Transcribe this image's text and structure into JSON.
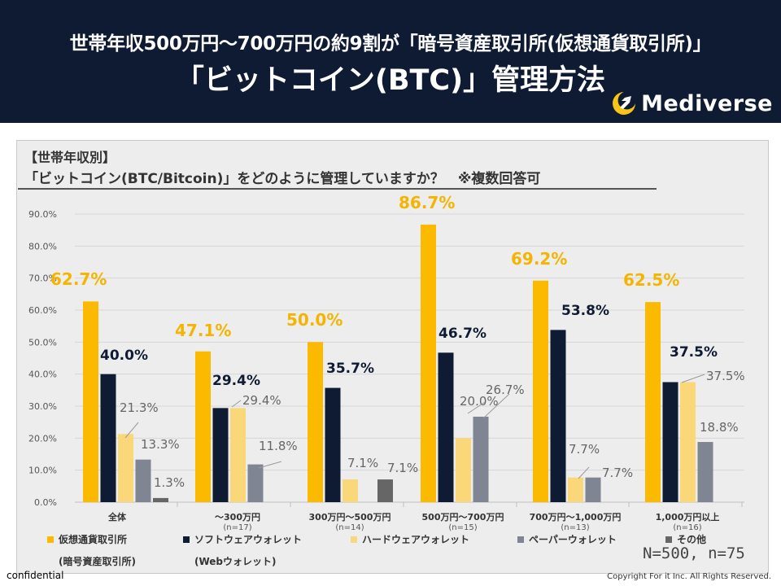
{
  "header": {
    "title_line1": "世帯年収500万円～700万円の約9割が「暗号資産取引所(仮想通貨取引所)」",
    "title_line2": "「ビットコイン(BTC)」管理方法",
    "brand": "Mediverse"
  },
  "colors": {
    "header_bg": "#0f1a33",
    "exchange": "#fbb900",
    "software": "#0f1a33",
    "hardware": "#fad779",
    "paper": "#7f8592",
    "other": "#666666",
    "exchange_label": "#f4b400",
    "panel_bg": "#ededed"
  },
  "chart_data": {
    "type": "bar",
    "title_tag": "【世帯年収別】",
    "title": "「ビットコイン(BTC/Bitcoin)」をどのように管理していますか？　※複数回答可",
    "categories": [
      "全体",
      "～300万円",
      "300万円～500万円",
      "500万円～700万円",
      "700万円～1,000万円",
      "1,000万円以上"
    ],
    "category_n": [
      "",
      "(n=17)",
      "(n=14)",
      "(n=15)",
      "(n=13)",
      "(n=16)"
    ],
    "y_ticks": [
      "0.0%",
      "10.0%",
      "20.0%",
      "30.0%",
      "40.0%",
      "50.0%",
      "60.0%",
      "70.0%",
      "80.0%",
      "90.0%"
    ],
    "ylim": [
      0,
      90
    ],
    "series": [
      {
        "name": "仮想通貨取引所",
        "name_sub": "(暗号資産取引所)",
        "values": [
          62.7,
          47.1,
          50.0,
          86.7,
          69.2,
          62.5
        ],
        "labels": [
          "62.7%",
          "47.1%",
          "50.0%",
          "86.7%",
          "69.2%",
          "62.5%"
        ]
      },
      {
        "name": "ソフトウェアウォレット",
        "name_sub": "(Webウォレット)",
        "values": [
          40.0,
          29.4,
          35.7,
          46.7,
          53.8,
          37.5
        ],
        "labels": [
          "40.0%",
          "29.4%",
          "35.7%",
          "46.7%",
          "53.8%",
          "37.5%"
        ]
      },
      {
        "name": "ハードウェアウォレット",
        "name_sub": "",
        "values": [
          21.3,
          29.4,
          7.1,
          20.0,
          7.7,
          37.5
        ],
        "labels": [
          "21.3%",
          "29.4%",
          "7.1%",
          "20.0%",
          "7.7%",
          "37.5%"
        ]
      },
      {
        "name": "ペーパーウォレット",
        "name_sub": "",
        "values": [
          13.3,
          11.8,
          0,
          26.7,
          7.7,
          18.8
        ],
        "labels": [
          "13.3%",
          "11.8%",
          "",
          "26.7%",
          "7.7%",
          "18.8%"
        ]
      },
      {
        "name": "その他",
        "name_sub": "",
        "values": [
          1.3,
          0,
          7.1,
          0,
          0,
          0
        ],
        "labels": [
          "1.3%",
          "",
          "7.1%",
          "",
          "",
          ""
        ]
      }
    ],
    "legend_position": "bottom"
  },
  "sample_note": "N=500, n=75",
  "footer": {
    "left": "confidential",
    "right": "Copyright For it Inc. All Rights Reserved."
  }
}
